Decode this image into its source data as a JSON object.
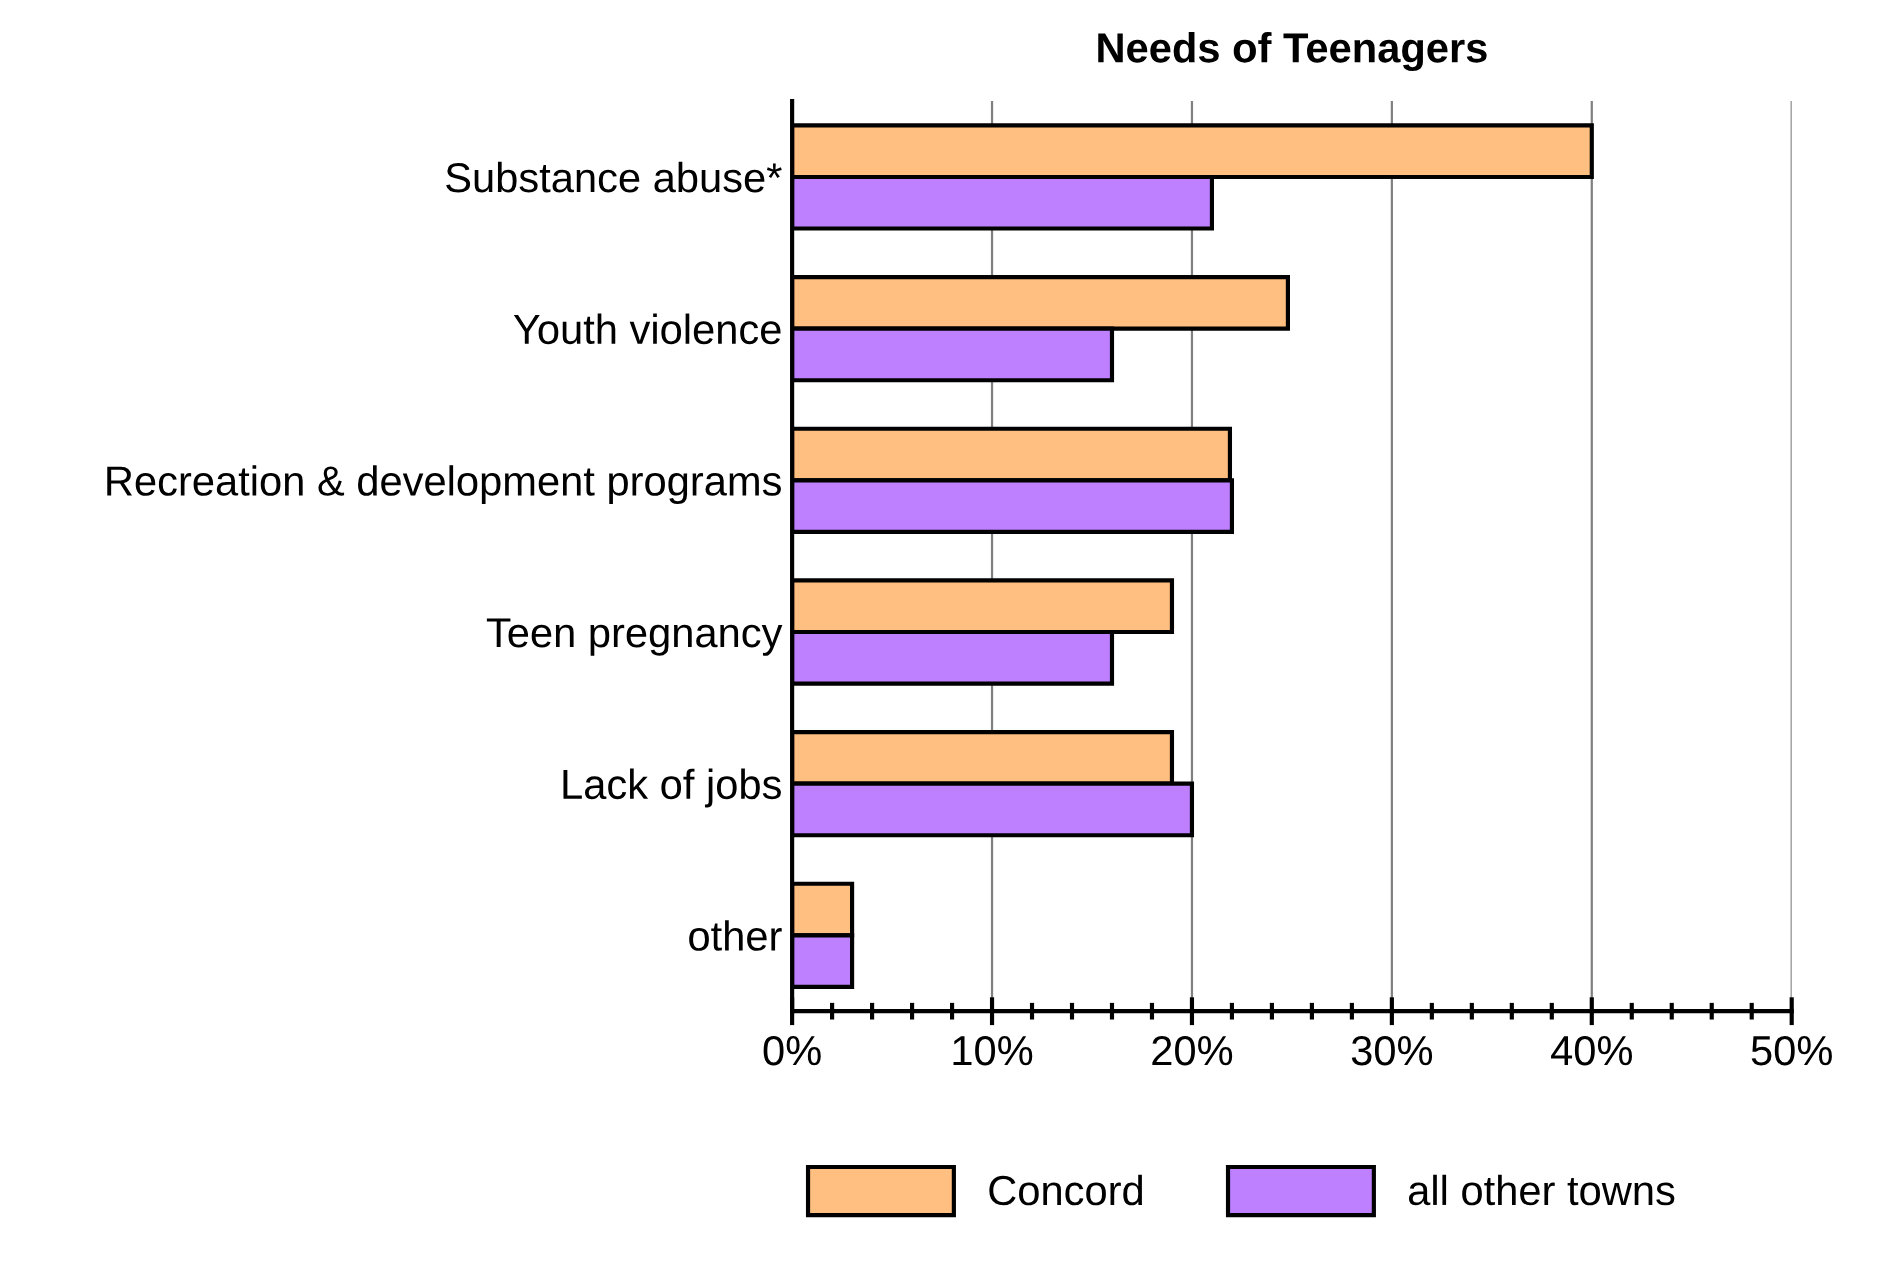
{
  "chart_data": {
    "type": "bar",
    "orientation": "horizontal",
    "title": "Needs of Teenagers",
    "categories": [
      "Substance abuse*",
      "Youth violence",
      "Recreation & development programs",
      "Teen pregnancy",
      "Lack of jobs",
      "other"
    ],
    "series": [
      {
        "name": "Concord",
        "color": "#ffbf80",
        "values": [
          40,
          24.8,
          21.9,
          19,
          19,
          3
        ]
      },
      {
        "name": "all other towns",
        "color": "#bf80ff",
        "values": [
          21,
          16,
          22,
          16,
          20,
          3
        ]
      }
    ],
    "xlim": [
      0,
      50
    ],
    "xticks": [
      {
        "value": 0,
        "label": "0%"
      },
      {
        "value": 10,
        "label": "10%"
      },
      {
        "value": 20,
        "label": "20%"
      },
      {
        "value": 30,
        "label": "30%"
      },
      {
        "value": 40,
        "label": "40%"
      },
      {
        "value": 50,
        "label": "50%"
      }
    ],
    "grid": "x",
    "legend": "bottom"
  }
}
